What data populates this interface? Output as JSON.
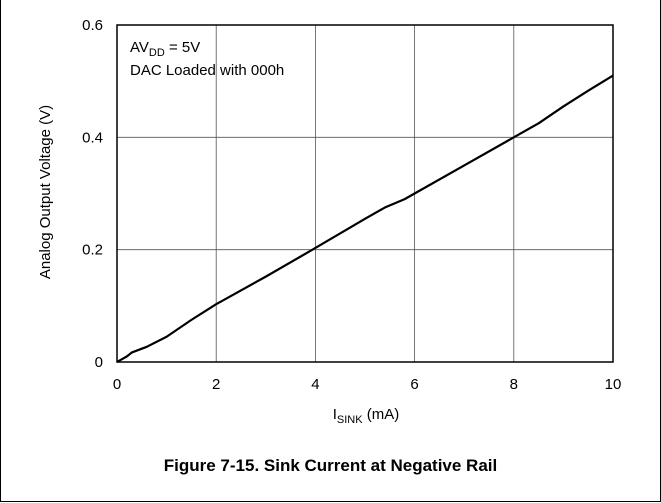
{
  "caption": "Figure 7-15. Sink Current at Negative Rail",
  "chart_data": {
    "type": "line",
    "xlabel": {
      "main": "I",
      "sub": "SINK",
      "rest": " (mA)"
    },
    "ylabel": "Analog Output Voltage (V)",
    "xlim": [
      0,
      10
    ],
    "ylim": [
      0,
      0.6
    ],
    "x_ticks": [
      0,
      2,
      4,
      6,
      8,
      10
    ],
    "y_ticks": [
      0,
      0.2,
      0.4,
      0.6
    ],
    "x_tick_labels": [
      "0",
      "2",
      "4",
      "6",
      "8",
      "10"
    ],
    "y_tick_labels": [
      "0",
      "0.2",
      "0.4",
      "0.6"
    ],
    "grid": true,
    "annotations": {
      "line1": {
        "main": "AV",
        "sub": "DD",
        "rest": " = 5V"
      },
      "line2": "DAC Loaded with 000h"
    },
    "series": [
      {
        "color": "#000000",
        "x": [
          0,
          0.1,
          0.2,
          0.3,
          0.6,
          1,
          1.5,
          2,
          3,
          4,
          5,
          5.4,
          5.8,
          6,
          7,
          8,
          8.5,
          9,
          9.5,
          10
        ],
        "y": [
          0,
          0.005,
          0.01,
          0.017,
          0.027,
          0.045,
          0.075,
          0.103,
          0.152,
          0.203,
          0.255,
          0.275,
          0.29,
          0.3,
          0.35,
          0.4,
          0.425,
          0.455,
          0.483,
          0.51
        ]
      }
    ]
  }
}
